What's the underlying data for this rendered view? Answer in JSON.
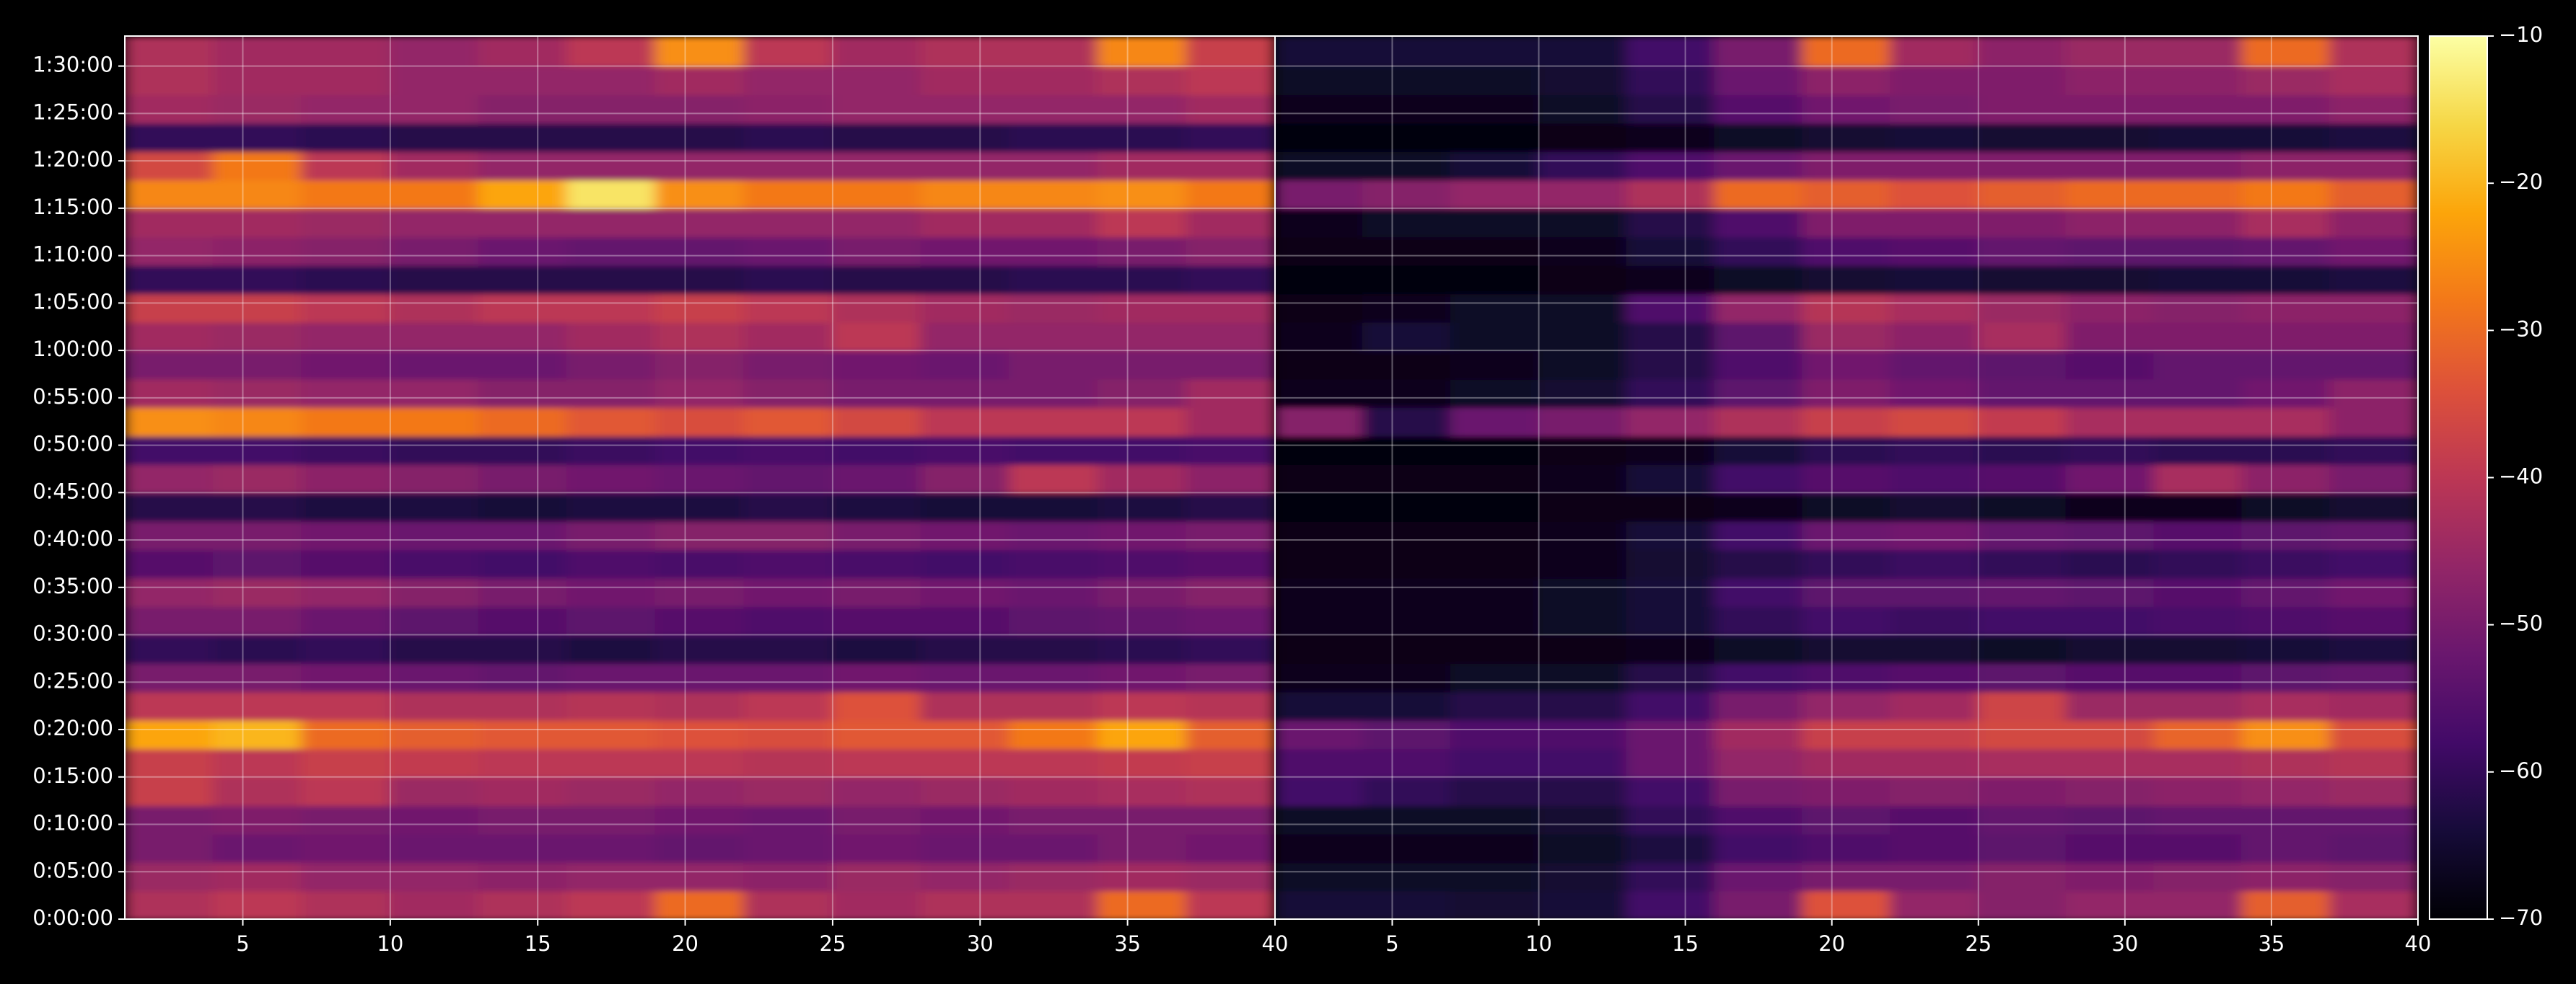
{
  "chart_data": {
    "type": "heatmap",
    "colormap": "inferno",
    "grid": true,
    "ylim": [
      0,
      5590
    ],
    "yticks": [
      {
        "value": 0,
        "label": "0:00:00"
      },
      {
        "value": 300,
        "label": "0:05:00"
      },
      {
        "value": 600,
        "label": "0:10:00"
      },
      {
        "value": 900,
        "label": "0:15:00"
      },
      {
        "value": 1200,
        "label": "0:20:00"
      },
      {
        "value": 1500,
        "label": "0:25:00"
      },
      {
        "value": 1800,
        "label": "0:30:00"
      },
      {
        "value": 2100,
        "label": "0:35:00"
      },
      {
        "value": 2400,
        "label": "0:40:00"
      },
      {
        "value": 2700,
        "label": "0:45:00"
      },
      {
        "value": 3000,
        "label": "0:50:00"
      },
      {
        "value": 3300,
        "label": "0:55:00"
      },
      {
        "value": 3600,
        "label": "1:00:00"
      },
      {
        "value": 3900,
        "label": "1:05:00"
      },
      {
        "value": 4200,
        "label": "1:10:00"
      },
      {
        "value": 4500,
        "label": "1:15:00"
      },
      {
        "value": 4800,
        "label": "1:20:00"
      },
      {
        "value": 5100,
        "label": "1:25:00"
      },
      {
        "value": 5400,
        "label": "1:30:00"
      }
    ],
    "y": [
      90,
      270,
      450,
      630,
      810,
      990,
      1170,
      1350,
      1530,
      1710,
      1890,
      2070,
      2250,
      2430,
      2610,
      2790,
      2970,
      3150,
      3330,
      3510,
      3690,
      3870,
      4050,
      4230,
      4410,
      4590,
      4770,
      4950,
      5130,
      5310,
      5490
    ],
    "zlim": [
      -70,
      -10
    ],
    "zticks": [
      {
        "value": -70,
        "label": "−70"
      },
      {
        "value": -60,
        "label": "−60"
      },
      {
        "value": -50,
        "label": "−50"
      },
      {
        "value": -40,
        "label": "−40"
      },
      {
        "value": -30,
        "label": "−30"
      },
      {
        "value": -20,
        "label": "−20"
      },
      {
        "value": -10,
        "label": "−10"
      }
    ],
    "panels": [
      {
        "xlim": [
          1,
          40
        ],
        "xticks": [
          5,
          10,
          15,
          20,
          25,
          30,
          35,
          40
        ],
        "x": [
          2.5,
          5.5,
          8.5,
          11.5,
          14.5,
          17.5,
          20.5,
          23.5,
          26.5,
          29.5,
          32.5,
          35.5,
          38.5
        ],
        "z": [
          [
            -42,
            -40,
            -42,
            -44,
            -42,
            -40,
            -30,
            -42,
            -44,
            -42,
            -42,
            -30,
            -40
          ],
          [
            -45,
            -44,
            -46,
            -46,
            -47,
            -46,
            -46,
            -47,
            -45,
            -46,
            -45,
            -44,
            -45
          ],
          [
            -50,
            -52,
            -51,
            -52,
            -52,
            -52,
            -53,
            -52,
            -51,
            -52,
            -52,
            -50,
            -51
          ],
          [
            -50,
            -49,
            -50,
            -51,
            -50,
            -50,
            -51,
            -52,
            -50,
            -51,
            -50,
            -50,
            -50
          ],
          [
            -38,
            -42,
            -40,
            -45,
            -44,
            -45,
            -46,
            -45,
            -46,
            -45,
            -44,
            -43,
            -42
          ],
          [
            -38,
            -40,
            -38,
            -39,
            -40,
            -40,
            -40,
            -41,
            -40,
            -40,
            -40,
            -39,
            -38
          ],
          [
            -22,
            -20,
            -30,
            -32,
            -33,
            -33,
            -34,
            -35,
            -33,
            -33,
            -28,
            -22,
            -32
          ],
          [
            -40,
            -40,
            -40,
            -42,
            -42,
            -41,
            -42,
            -40,
            -34,
            -42,
            -42,
            -40,
            -41
          ],
          [
            -50,
            -50,
            -51,
            -52,
            -53,
            -52,
            -52,
            -52,
            -51,
            -52,
            -52,
            -51,
            -50
          ],
          [
            -60,
            -61,
            -60,
            -62,
            -62,
            -63,
            -62,
            -62,
            -63,
            -62,
            -62,
            -61,
            -60
          ],
          [
            -50,
            -50,
            -52,
            -54,
            -55,
            -54,
            -55,
            -56,
            -55,
            -55,
            -54,
            -53,
            -52
          ],
          [
            -46,
            -45,
            -46,
            -48,
            -50,
            -51,
            -50,
            -51,
            -50,
            -51,
            -52,
            -50,
            -48
          ],
          [
            -55,
            -54,
            -55,
            -57,
            -58,
            -56,
            -57,
            -56,
            -57,
            -58,
            -57,
            -56,
            -55
          ],
          [
            -50,
            -50,
            -51,
            -52,
            -52,
            -50,
            -48,
            -48,
            -50,
            -51,
            -52,
            -51,
            -50
          ],
          [
            -62,
            -62,
            -63,
            -63,
            -64,
            -63,
            -63,
            -62,
            -63,
            -64,
            -64,
            -63,
            -62
          ],
          [
            -46,
            -45,
            -47,
            -48,
            -50,
            -51,
            -52,
            -53,
            -52,
            -48,
            -40,
            -44,
            -47
          ],
          [
            -58,
            -58,
            -59,
            -60,
            -60,
            -59,
            -58,
            -57,
            -58,
            -57,
            -58,
            -58,
            -57
          ],
          [
            -25,
            -26,
            -28,
            -28,
            -30,
            -33,
            -35,
            -33,
            -36,
            -40,
            -40,
            -40,
            -44
          ],
          [
            -44,
            -45,
            -46,
            -46,
            -48,
            -48,
            -46,
            -48,
            -50,
            -50,
            -50,
            -48,
            -44
          ],
          [
            -50,
            -50,
            -51,
            -52,
            -52,
            -50,
            -48,
            -50,
            -51,
            -52,
            -50,
            -50,
            -50
          ],
          [
            -44,
            -45,
            -46,
            -46,
            -46,
            -44,
            -42,
            -44,
            -40,
            -46,
            -46,
            -46,
            -46
          ],
          [
            -38,
            -38,
            -40,
            -42,
            -40,
            -40,
            -38,
            -40,
            -42,
            -44,
            -45,
            -44,
            -44
          ],
          [
            -60,
            -60,
            -61,
            -62,
            -62,
            -62,
            -62,
            -61,
            -62,
            -62,
            -61,
            -61,
            -60
          ],
          [
            -46,
            -47,
            -48,
            -50,
            -52,
            -53,
            -53,
            -52,
            -50,
            -51,
            -51,
            -50,
            -48
          ],
          [
            -44,
            -44,
            -45,
            -46,
            -46,
            -46,
            -46,
            -46,
            -46,
            -44,
            -44,
            -40,
            -44
          ],
          [
            -26,
            -26,
            -28,
            -28,
            -22,
            -14,
            -25,
            -28,
            -28,
            -26,
            -26,
            -25,
            -28
          ],
          [
            -36,
            -28,
            -40,
            -44,
            -46,
            -46,
            -46,
            -46,
            -46,
            -46,
            -46,
            -44,
            -44
          ],
          [
            -60,
            -60,
            -61,
            -62,
            -62,
            -62,
            -62,
            -61,
            -62,
            -62,
            -61,
            -61,
            -60
          ],
          [
            -44,
            -45,
            -46,
            -46,
            -48,
            -48,
            -48,
            -47,
            -46,
            -46,
            -46,
            -46,
            -44
          ],
          [
            -42,
            -44,
            -44,
            -46,
            -46,
            -46,
            -44,
            -46,
            -46,
            -44,
            -44,
            -42,
            -40
          ],
          [
            -42,
            -44,
            -44,
            -46,
            -44,
            -40,
            -25,
            -40,
            -44,
            -42,
            -42,
            -26,
            -38
          ]
        ]
      },
      {
        "xlim": [
          1,
          40
        ],
        "xticks": [
          5,
          10,
          15,
          20,
          25,
          30,
          35,
          40
        ],
        "x": [
          2.5,
          5.5,
          8.5,
          11.5,
          14.5,
          17.5,
          20.5,
          23.5,
          26.5,
          29.5,
          32.5,
          35.5,
          38.5
        ],
        "z": [
          [
            -64,
            -64,
            -65,
            -64,
            -58,
            -50,
            -34,
            -46,
            -48,
            -46,
            -46,
            -32,
            -43
          ],
          [
            -66,
            -66,
            -66,
            -65,
            -60,
            -52,
            -50,
            -50,
            -48,
            -49,
            -48,
            -47,
            -48
          ],
          [
            -67,
            -67,
            -67,
            -66,
            -63,
            -58,
            -56,
            -55,
            -54,
            -55,
            -55,
            -53,
            -54
          ],
          [
            -66,
            -66,
            -66,
            -65,
            -60,
            -56,
            -54,
            -55,
            -53,
            -54,
            -53,
            -53,
            -53
          ],
          [
            -58,
            -60,
            -62,
            -62,
            -58,
            -50,
            -49,
            -48,
            -49,
            -48,
            -47,
            -46,
            -45
          ],
          [
            -56,
            -56,
            -58,
            -58,
            -52,
            -46,
            -44,
            -44,
            -43,
            -43,
            -43,
            -42,
            -41
          ],
          [
            -52,
            -54,
            -56,
            -56,
            -52,
            -44,
            -38,
            -38,
            -36,
            -36,
            -31,
            -25,
            -35
          ],
          [
            -64,
            -64,
            -62,
            -62,
            -58,
            -50,
            -46,
            -44,
            -37,
            -45,
            -45,
            -43,
            -44
          ],
          [
            -67,
            -67,
            -66,
            -66,
            -62,
            -58,
            -56,
            -55,
            -54,
            -55,
            -55,
            -54,
            -53
          ],
          [
            -68,
            -68,
            -68,
            -68,
            -67,
            -66,
            -65,
            -65,
            -66,
            -65,
            -65,
            -64,
            -63
          ],
          [
            -67,
            -67,
            -67,
            -66,
            -64,
            -60,
            -58,
            -59,
            -58,
            -58,
            -57,
            -56,
            -55
          ],
          [
            -67,
            -67,
            -67,
            -66,
            -64,
            -58,
            -54,
            -54,
            -53,
            -54,
            -55,
            -53,
            -51
          ],
          [
            -68,
            -68,
            -68,
            -67,
            -65,
            -62,
            -60,
            -59,
            -60,
            -61,
            -60,
            -59,
            -58
          ],
          [
            -68,
            -68,
            -68,
            -67,
            -64,
            -58,
            -52,
            -51,
            -53,
            -54,
            -55,
            -54,
            -53
          ],
          [
            -69,
            -69,
            -69,
            -68,
            -68,
            -67,
            -66,
            -65,
            -66,
            -67,
            -67,
            -66,
            -65
          ],
          [
            -68,
            -68,
            -68,
            -67,
            -64,
            -58,
            -55,
            -56,
            -55,
            -51,
            -43,
            -47,
            -50
          ],
          [
            -69,
            -69,
            -69,
            -68,
            -67,
            -64,
            -61,
            -60,
            -61,
            -60,
            -61,
            -61,
            -60
          ],
          [
            -48,
            -62,
            -52,
            -50,
            -46,
            -42,
            -38,
            -36,
            -39,
            -43,
            -43,
            -43,
            -47
          ],
          [
            -67,
            -67,
            -66,
            -65,
            -60,
            -54,
            -49,
            -51,
            -53,
            -53,
            -53,
            -51,
            -47
          ],
          [
            -68,
            -68,
            -67,
            -66,
            -62,
            -56,
            -51,
            -53,
            -54,
            -55,
            -53,
            -53,
            -53
          ],
          [
            -67,
            -64,
            -66,
            -66,
            -62,
            -54,
            -45,
            -47,
            -43,
            -49,
            -49,
            -49,
            -49
          ],
          [
            -68,
            -67,
            -66,
            -66,
            -56,
            -46,
            -41,
            -43,
            -45,
            -47,
            -48,
            -47,
            -47
          ],
          [
            -69,
            -69,
            -69,
            -68,
            -67,
            -66,
            -65,
            -64,
            -65,
            -65,
            -64,
            -64,
            -63
          ],
          [
            -68,
            -68,
            -68,
            -67,
            -64,
            -60,
            -56,
            -55,
            -53,
            -54,
            -54,
            -53,
            -51
          ],
          [
            -67,
            -66,
            -66,
            -66,
            -62,
            -56,
            -49,
            -49,
            -49,
            -47,
            -47,
            -43,
            -47
          ],
          [
            -50,
            -48,
            -46,
            -46,
            -42,
            -30,
            -32,
            -34,
            -32,
            -30,
            -30,
            -28,
            -32
          ],
          [
            -66,
            -66,
            -64,
            -60,
            -56,
            -52,
            -49,
            -49,
            -49,
            -49,
            -49,
            -47,
            -47
          ],
          [
            -69,
            -69,
            -69,
            -68,
            -67,
            -66,
            -65,
            -64,
            -65,
            -65,
            -64,
            -64,
            -63
          ],
          [
            -67,
            -67,
            -67,
            -66,
            -62,
            -55,
            -51,
            -50,
            -49,
            -49,
            -49,
            -49,
            -47
          ],
          [
            -66,
            -66,
            -66,
            -65,
            -60,
            -52,
            -47,
            -49,
            -49,
            -47,
            -47,
            -45,
            -43
          ],
          [
            -64,
            -64,
            -64,
            -64,
            -58,
            -50,
            -30,
            -44,
            -47,
            -45,
            -45,
            -30,
            -42
          ]
        ]
      }
    ]
  }
}
